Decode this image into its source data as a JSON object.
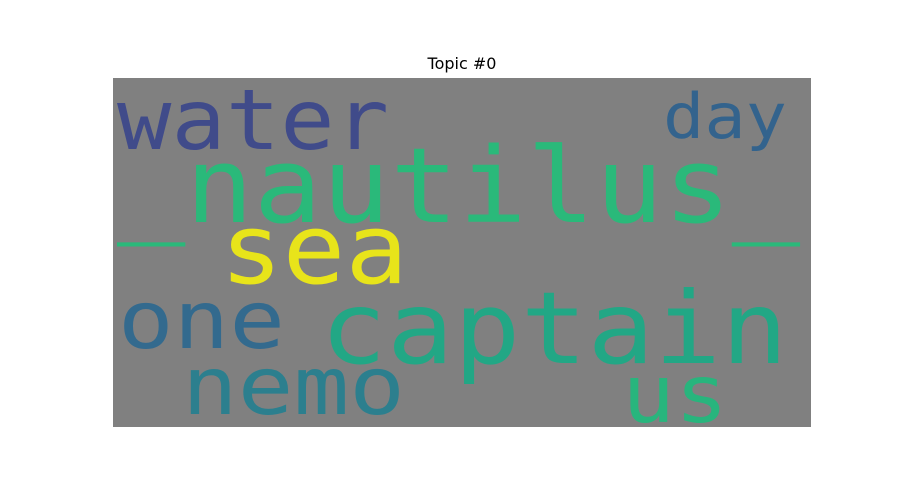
{
  "chart_data": {
    "type": "wordcloud",
    "title": "Topic #0",
    "background": "#808080",
    "words": [
      {
        "text": "_nautilus_",
        "color": "#2ab97a"
      },
      {
        "text": "captain",
        "color": "#22a785"
      },
      {
        "text": "sea",
        "color": "#e8e41a"
      },
      {
        "text": "water",
        "color": "#404b8a"
      },
      {
        "text": "nemo",
        "color": "#2c7f8e"
      },
      {
        "text": "one",
        "color": "#336a8e"
      },
      {
        "text": "us",
        "color": "#28b57d"
      },
      {
        "text": "day",
        "color": "#33638d"
      }
    ]
  }
}
